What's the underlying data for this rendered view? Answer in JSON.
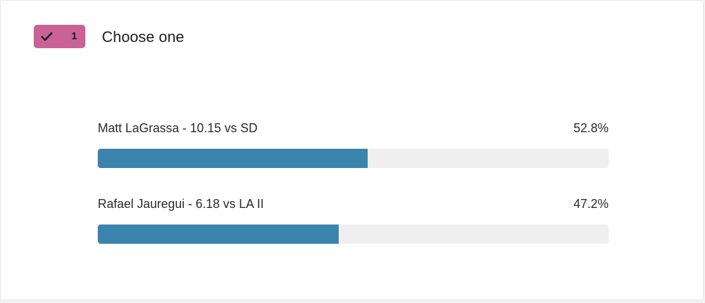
{
  "poll": {
    "badge": {
      "icon": "check-icon",
      "count": "1",
      "color": "#c96397"
    },
    "question": "Choose one",
    "bar_color": "#3a84ad",
    "track_color": "#efefef",
    "options": [
      {
        "label": "Matt LaGrassa - 10.15 vs SD",
        "percent_text": "52.8%",
        "percent": 52.8
      },
      {
        "label": "Rafael Jauregui - 6.18 vs LA II",
        "percent_text": "47.2%",
        "percent": 47.2
      }
    ]
  }
}
